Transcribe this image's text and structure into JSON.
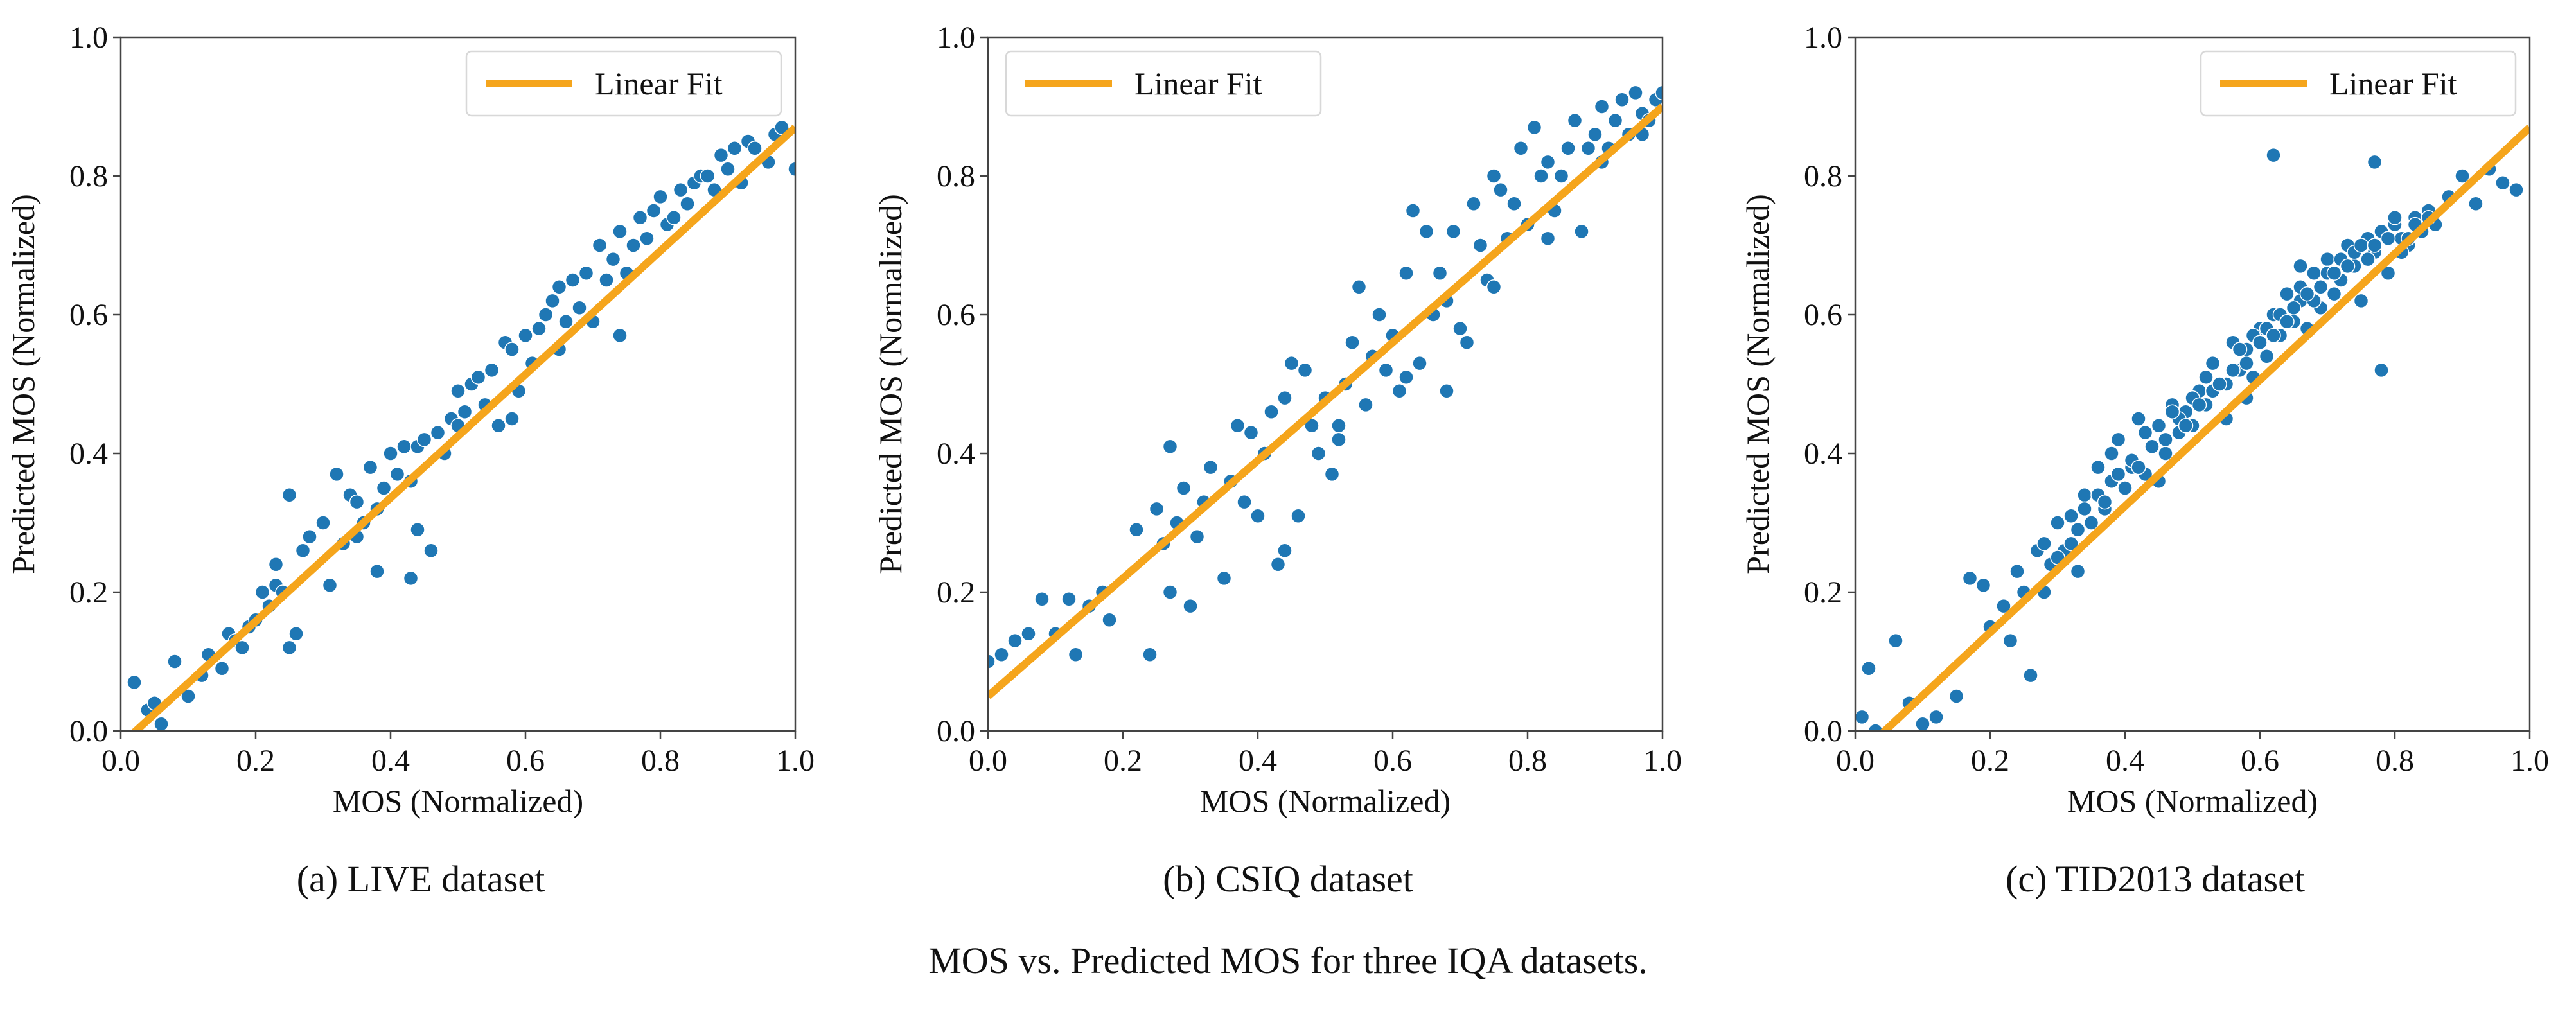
{
  "figure": {
    "caption": "MOS vs. Predicted MOS for three IQA datasets.",
    "subcaptions": [
      "(a) LIVE dataset",
      "(b) CSIQ dataset",
      "(c) TID2013 dataset"
    ],
    "colors": {
      "points": "#1f77b4",
      "fit_line": "#f5a51c",
      "axes": "#444444"
    }
  },
  "chart_data": [
    {
      "type": "scatter",
      "subcaption": "(a) LIVE dataset",
      "xlabel": "MOS (Normalized)",
      "ylabel": "Predicted MOS (Normalized)",
      "xlim": [
        0.0,
        1.0
      ],
      "ylim": [
        0.0,
        1.0
      ],
      "xticks": [
        "0.0",
        "0.2",
        "0.4",
        "0.6",
        "0.8",
        "1.0"
      ],
      "yticks": [
        "0.0",
        "0.2",
        "0.4",
        "0.6",
        "0.8",
        "1.0"
      ],
      "grid": false,
      "legend": {
        "position": "top-right",
        "entries": [
          "Linear Fit"
        ]
      },
      "fit_line": {
        "slope": 0.89,
        "intercept": -0.02
      },
      "points": {
        "x": [
          0.02,
          0.04,
          0.05,
          0.06,
          0.08,
          0.1,
          0.12,
          0.13,
          0.15,
          0.16,
          0.17,
          0.18,
          0.19,
          0.2,
          0.21,
          0.22,
          0.23,
          0.24,
          0.25,
          0.25,
          0.26,
          0.27,
          0.28,
          0.3,
          0.31,
          0.32,
          0.33,
          0.34,
          0.35,
          0.35,
          0.36,
          0.37,
          0.38,
          0.39,
          0.4,
          0.41,
          0.42,
          0.43,
          0.43,
          0.44,
          0.45,
          0.46,
          0.47,
          0.48,
          0.49,
          0.5,
          0.5,
          0.51,
          0.52,
          0.53,
          0.54,
          0.55,
          0.56,
          0.57,
          0.58,
          0.59,
          0.6,
          0.61,
          0.62,
          0.63,
          0.64,
          0.65,
          0.66,
          0.67,
          0.68,
          0.69,
          0.7,
          0.71,
          0.72,
          0.73,
          0.74,
          0.75,
          0.76,
          0.77,
          0.78,
          0.79,
          0.8,
          0.81,
          0.82,
          0.83,
          0.84,
          0.85,
          0.86,
          0.87,
          0.88,
          0.89,
          0.9,
          0.91,
          0.92,
          0.93,
          0.94,
          0.96,
          0.97,
          0.98,
          1.0,
          0.23,
          0.26,
          0.38,
          0.44,
          0.58,
          0.65,
          0.74
        ],
        "y": [
          0.07,
          0.03,
          0.04,
          0.01,
          0.1,
          0.05,
          0.08,
          0.11,
          0.09,
          0.14,
          0.13,
          0.12,
          0.15,
          0.16,
          0.2,
          0.18,
          0.21,
          0.2,
          0.34,
          0.12,
          0.14,
          0.26,
          0.28,
          0.3,
          0.21,
          0.37,
          0.27,
          0.34,
          0.33,
          0.28,
          0.3,
          0.38,
          0.32,
          0.35,
          0.4,
          0.37,
          0.41,
          0.22,
          0.36,
          0.41,
          0.42,
          0.26,
          0.43,
          0.4,
          0.45,
          0.44,
          0.49,
          0.46,
          0.5,
          0.51,
          0.47,
          0.52,
          0.44,
          0.56,
          0.55,
          0.49,
          0.57,
          0.53,
          0.58,
          0.6,
          0.62,
          0.64,
          0.59,
          0.65,
          0.61,
          0.66,
          0.59,
          0.7,
          0.65,
          0.68,
          0.72,
          0.66,
          0.7,
          0.74,
          0.71,
          0.75,
          0.77,
          0.73,
          0.74,
          0.78,
          0.76,
          0.79,
          0.8,
          0.8,
          0.78,
          0.83,
          0.81,
          0.84,
          0.79,
          0.85,
          0.84,
          0.82,
          0.86,
          0.87,
          0.81,
          0.24,
          0.14,
          0.23,
          0.29,
          0.45,
          0.55,
          0.57
        ]
      }
    },
    {
      "type": "scatter",
      "subcaption": "(b) CSIQ dataset",
      "xlabel": "MOS (Normalized)",
      "ylabel": "Predicted MOS (Normalized)",
      "xlim": [
        0.0,
        1.0
      ],
      "ylim": [
        0.0,
        1.0
      ],
      "xticks": [
        "0.0",
        "0.2",
        "0.4",
        "0.6",
        "0.8",
        "1.0"
      ],
      "yticks": [
        "0.0",
        "0.2",
        "0.4",
        "0.6",
        "0.8",
        "1.0"
      ],
      "grid": false,
      "legend": {
        "position": "top-left",
        "entries": [
          "Linear Fit"
        ]
      },
      "fit_line": {
        "slope": 0.85,
        "intercept": 0.05
      },
      "points": {
        "x": [
          0.0,
          0.02,
          0.04,
          0.06,
          0.08,
          0.1,
          0.12,
          0.13,
          0.15,
          0.17,
          0.18,
          0.22,
          0.24,
          0.25,
          0.26,
          0.27,
          0.28,
          0.29,
          0.3,
          0.31,
          0.32,
          0.33,
          0.35,
          0.36,
          0.37,
          0.38,
          0.39,
          0.4,
          0.41,
          0.42,
          0.43,
          0.44,
          0.45,
          0.46,
          0.47,
          0.48,
          0.49,
          0.5,
          0.51,
          0.52,
          0.53,
          0.54,
          0.55,
          0.56,
          0.57,
          0.58,
          0.59,
          0.6,
          0.61,
          0.62,
          0.63,
          0.64,
          0.65,
          0.66,
          0.67,
          0.68,
          0.69,
          0.7,
          0.71,
          0.72,
          0.73,
          0.74,
          0.75,
          0.76,
          0.77,
          0.78,
          0.79,
          0.8,
          0.81,
          0.82,
          0.83,
          0.84,
          0.85,
          0.86,
          0.87,
          0.88,
          0.89,
          0.9,
          0.91,
          0.92,
          0.93,
          0.94,
          0.95,
          0.96,
          0.97,
          0.98,
          0.99,
          1.0,
          0.27,
          0.44,
          0.52,
          0.62,
          0.68,
          0.75,
          0.83,
          0.91,
          0.97
        ],
        "y": [
          0.1,
          0.11,
          0.13,
          0.14,
          0.19,
          0.14,
          0.19,
          0.11,
          0.18,
          0.2,
          0.16,
          0.29,
          0.11,
          0.32,
          0.27,
          0.41,
          0.3,
          0.35,
          0.18,
          0.28,
          0.33,
          0.38,
          0.22,
          0.36,
          0.44,
          0.33,
          0.43,
          0.31,
          0.4,
          0.46,
          0.24,
          0.48,
          0.53,
          0.31,
          0.52,
          0.44,
          0.4,
          0.48,
          0.37,
          0.44,
          0.5,
          0.56,
          0.64,
          0.47,
          0.54,
          0.6,
          0.52,
          0.57,
          0.49,
          0.66,
          0.75,
          0.53,
          0.72,
          0.6,
          0.66,
          0.62,
          0.72,
          0.58,
          0.56,
          0.76,
          0.7,
          0.65,
          0.8,
          0.78,
          0.71,
          0.76,
          0.84,
          0.73,
          0.87,
          0.8,
          0.82,
          0.75,
          0.8,
          0.84,
          0.88,
          0.72,
          0.84,
          0.86,
          0.9,
          0.84,
          0.88,
          0.91,
          0.86,
          0.92,
          0.89,
          0.88,
          0.91,
          0.92,
          0.2,
          0.26,
          0.42,
          0.51,
          0.49,
          0.64,
          0.71,
          0.82,
          0.86
        ]
      }
    },
    {
      "type": "scatter",
      "subcaption": "(c) TID2013 dataset",
      "xlabel": "MOS (Normalized)",
      "ylabel": "Predicted MOS (Normalized)",
      "xlim": [
        0.0,
        1.0
      ],
      "ylim": [
        0.0,
        1.0
      ],
      "xticks": [
        "0.0",
        "0.2",
        "0.4",
        "0.6",
        "0.8",
        "1.0"
      ],
      "yticks": [
        "0.0",
        "0.2",
        "0.4",
        "0.6",
        "0.8",
        "1.0"
      ],
      "grid": false,
      "legend": {
        "position": "top-right",
        "entries": [
          "Linear Fit"
        ]
      },
      "fit_line": {
        "slope": 0.91,
        "intercept": -0.04
      },
      "points": {
        "x": [
          0.01,
          0.02,
          0.03,
          0.06,
          0.08,
          0.1,
          0.12,
          0.15,
          0.17,
          0.19,
          0.2,
          0.22,
          0.23,
          0.24,
          0.25,
          0.26,
          0.27,
          0.28,
          0.29,
          0.3,
          0.31,
          0.32,
          0.33,
          0.34,
          0.35,
          0.36,
          0.37,
          0.38,
          0.39,
          0.4,
          0.41,
          0.42,
          0.43,
          0.44,
          0.45,
          0.46,
          0.47,
          0.48,
          0.49,
          0.5,
          0.51,
          0.52,
          0.53,
          0.54,
          0.55,
          0.56,
          0.57,
          0.58,
          0.59,
          0.6,
          0.61,
          0.62,
          0.63,
          0.64,
          0.65,
          0.66,
          0.67,
          0.68,
          0.69,
          0.7,
          0.71,
          0.72,
          0.73,
          0.74,
          0.75,
          0.76,
          0.77,
          0.78,
          0.79,
          0.8,
          0.81,
          0.82,
          0.83,
          0.84,
          0.85,
          0.86,
          0.88,
          0.9,
          0.92,
          0.94,
          0.96,
          0.98,
          0.32,
          0.36,
          0.38,
          0.41,
          0.43,
          0.46,
          0.48,
          0.5,
          0.52,
          0.55,
          0.57,
          0.59,
          0.61,
          0.63,
          0.66,
          0.68,
          0.7,
          0.72,
          0.74,
          0.76,
          0.78,
          0.8,
          0.82,
          0.34,
          0.39,
          0.44,
          0.47,
          0.53,
          0.56,
          0.6,
          0.64,
          0.67,
          0.71,
          0.75,
          0.79,
          0.83,
          0.37,
          0.42,
          0.49,
          0.51,
          0.54,
          0.58,
          0.62,
          0.65,
          0.69,
          0.73,
          0.77,
          0.81,
          0.85,
          0.45,
          0.58,
          0.62,
          0.78,
          0.77,
          0.66,
          0.28,
          0.3,
          0.33
        ],
        "y": [
          0.02,
          0.09,
          0.0,
          0.13,
          0.04,
          0.01,
          0.02,
          0.05,
          0.22,
          0.21,
          0.15,
          0.18,
          0.13,
          0.23,
          0.2,
          0.08,
          0.26,
          0.27,
          0.24,
          0.3,
          0.26,
          0.31,
          0.29,
          0.34,
          0.3,
          0.38,
          0.32,
          0.36,
          0.42,
          0.35,
          0.38,
          0.45,
          0.37,
          0.41,
          0.44,
          0.4,
          0.47,
          0.43,
          0.46,
          0.44,
          0.49,
          0.47,
          0.53,
          0.5,
          0.45,
          0.56,
          0.52,
          0.55,
          0.51,
          0.58,
          0.54,
          0.6,
          0.57,
          0.63,
          0.59,
          0.62,
          0.58,
          0.66,
          0.61,
          0.68,
          0.63,
          0.65,
          0.7,
          0.67,
          0.62,
          0.71,
          0.69,
          0.72,
          0.66,
          0.73,
          0.71,
          0.7,
          0.74,
          0.72,
          0.75,
          0.73,
          0.77,
          0.8,
          0.76,
          0.81,
          0.79,
          0.78,
          0.27,
          0.34,
          0.4,
          0.39,
          0.43,
          0.42,
          0.45,
          0.48,
          0.51,
          0.5,
          0.55,
          0.57,
          0.58,
          0.6,
          0.64,
          0.62,
          0.66,
          0.68,
          0.69,
          0.68,
          0.72,
          0.74,
          0.71,
          0.32,
          0.37,
          0.41,
          0.46,
          0.49,
          0.52,
          0.56,
          0.59,
          0.63,
          0.66,
          0.7,
          0.71,
          0.73,
          0.33,
          0.38,
          0.44,
          0.47,
          0.5,
          0.53,
          0.57,
          0.61,
          0.64,
          0.67,
          0.7,
          0.69,
          0.74,
          0.36,
          0.48,
          0.83,
          0.52,
          0.82,
          0.67,
          0.2,
          0.25,
          0.23
        ]
      }
    }
  ]
}
